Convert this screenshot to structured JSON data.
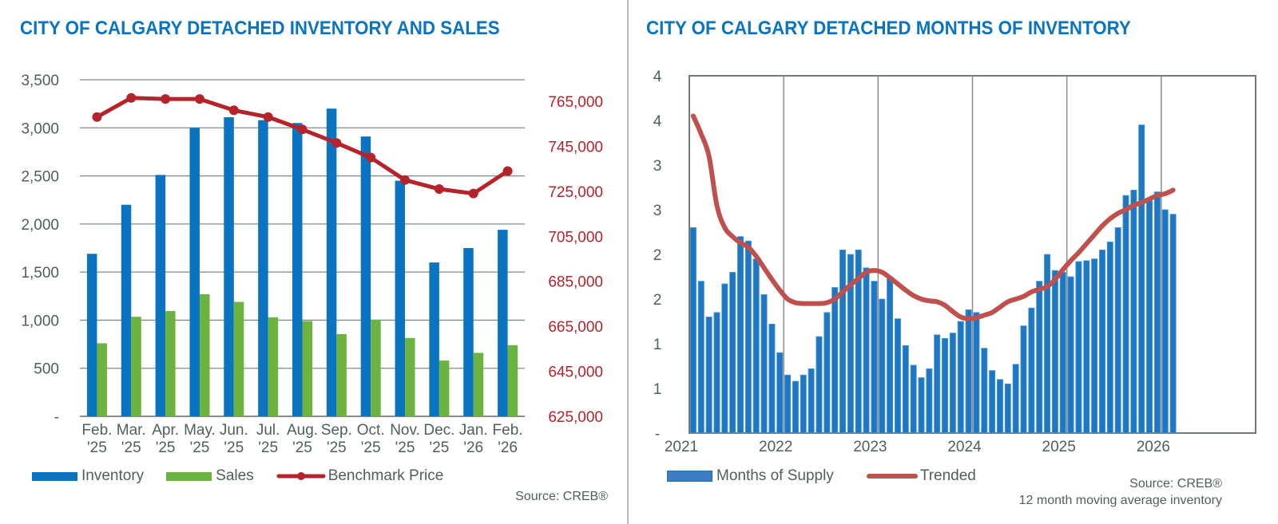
{
  "left_chart": {
    "title": "CITY OF CALGARY DETACHED INVENTORY AND SALES",
    "source": "Source: CREB®",
    "legend": [
      {
        "name": "Inventory",
        "kind": "bar",
        "color": "#0a74c0"
      },
      {
        "name": "Sales",
        "kind": "bar",
        "color": "#6db33f"
      },
      {
        "name": "Benchmark Price",
        "kind": "line-marker",
        "color": "#b5232b"
      }
    ]
  },
  "right_chart": {
    "title": "CITY OF CALGARY DETACHED MONTHS OF INVENTORY",
    "source": "Source: CREB®",
    "note": "12 month moving average inventory",
    "legend": [
      {
        "name": "Months of Supply",
        "kind": "bar",
        "color": "#1a73c0"
      },
      {
        "name": "Trended",
        "kind": "line",
        "color": "#c0504d"
      }
    ]
  },
  "chart_data": [
    {
      "type": "bar",
      "title": "CITY OF CALGARY DETACHED INVENTORY AND SALES",
      "categories": [
        [
          "Feb.",
          "'25"
        ],
        [
          "Mar.",
          "'25"
        ],
        [
          "Apr.",
          "'25"
        ],
        [
          "May.",
          "'25"
        ],
        [
          "Jun.",
          "'25"
        ],
        [
          "Jul.",
          "'25"
        ],
        [
          "Aug.",
          "'25"
        ],
        [
          "Sep.",
          "'25"
        ],
        [
          "Oct.",
          "'25"
        ],
        [
          "Nov.",
          "'25"
        ],
        [
          "Dec.",
          "'25"
        ],
        [
          "Jan.",
          "'26"
        ],
        [
          "Feb.",
          "'26"
        ]
      ],
      "series": [
        {
          "name": "Inventory",
          "type": "bar",
          "axis": "left",
          "color": "#0a74c0",
          "values": [
            1690,
            2200,
            2510,
            3000,
            3110,
            3080,
            3050,
            3200,
            2910,
            2450,
            1600,
            1750,
            1940
          ]
        },
        {
          "name": "Sales",
          "type": "bar",
          "axis": "left",
          "color": "#6db33f",
          "values": [
            760,
            1035,
            1095,
            1270,
            1190,
            1030,
            990,
            855,
            1005,
            815,
            580,
            660,
            740
          ]
        },
        {
          "name": "Benchmark Price",
          "type": "line",
          "axis": "right",
          "color": "#b5232b",
          "values": [
            758000,
            766500,
            766000,
            766000,
            761000,
            758000,
            752500,
            746500,
            740000,
            730000,
            726000,
            724000,
            734000
          ]
        }
      ],
      "y_left": {
        "min": 0,
        "max": 3500,
        "ticks": [
          0,
          500,
          1000,
          1500,
          2000,
          2500,
          3000,
          3500
        ],
        "tick_labels": [
          "-",
          "500",
          "1,000",
          "1,500",
          "2,000",
          "2,500",
          "3,000",
          "3,500"
        ]
      },
      "y_right": {
        "min": 625000,
        "max": 775000,
        "ticks": [
          625000,
          645000,
          665000,
          685000,
          705000,
          725000,
          745000,
          765000
        ],
        "tick_labels": [
          "625,000",
          "645,000",
          "665,000",
          "685,000",
          "705,000",
          "725,000",
          "745,000",
          "765,000"
        ]
      },
      "grid": true,
      "legend_position": "bottom"
    },
    {
      "type": "bar",
      "title": "CITY OF CALGARY DETACHED MONTHS OF INVENTORY",
      "x_start": "2021-01",
      "x_year_labels": [
        "2021",
        "2022",
        "2023",
        "2024",
        "2025",
        "2026"
      ],
      "x_range_years": [
        2021,
        2027
      ],
      "series": [
        {
          "name": "Months of Supply",
          "type": "bar",
          "color": "#1a73c0",
          "values": [
            2.3,
            1.7,
            1.3,
            1.35,
            1.67,
            1.8,
            2.2,
            2.15,
            1.95,
            1.55,
            1.22,
            0.9,
            0.65,
            0.58,
            0.65,
            0.72,
            1.08,
            1.35,
            1.63,
            2.05,
            2.0,
            2.05,
            1.85,
            1.7,
            1.5,
            1.75,
            1.28,
            0.98,
            0.76,
            0.62,
            0.72,
            1.1,
            1.06,
            1.12,
            1.25,
            1.38,
            1.35,
            0.95,
            0.7,
            0.6,
            0.55,
            0.77,
            1.2,
            1.4,
            1.7,
            2.0,
            1.82,
            1.8,
            1.75,
            1.92,
            1.93,
            1.95,
            2.05,
            2.14,
            2.3,
            2.66,
            2.72,
            3.45,
            2.6,
            2.7,
            2.5,
            2.45
          ]
        },
        {
          "name": "Trended",
          "type": "line",
          "color": "#c0504d",
          "values": [
            3.55,
            3.35,
            3.1,
            2.55,
            2.3,
            2.2,
            2.13,
            2.08,
            1.98,
            1.85,
            1.72,
            1.6,
            1.5,
            1.46,
            1.45,
            1.45,
            1.45,
            1.46,
            1.5,
            1.58,
            1.66,
            1.73,
            1.8,
            1.82,
            1.8,
            1.74,
            1.67,
            1.6,
            1.54,
            1.5,
            1.48,
            1.47,
            1.43,
            1.36,
            1.3,
            1.28,
            1.29,
            1.32,
            1.35,
            1.41,
            1.47,
            1.5,
            1.53,
            1.58,
            1.61,
            1.64,
            1.72,
            1.83,
            1.93,
            2.02,
            2.12,
            2.22,
            2.32,
            2.4,
            2.46,
            2.5,
            2.55,
            2.58,
            2.62,
            2.66,
            2.68,
            2.72
          ]
        }
      ],
      "y": {
        "min": 0,
        "max": 4,
        "ticks": [
          0,
          0.5,
          1,
          1.5,
          2,
          2.5,
          3,
          3.5,
          4
        ],
        "tick_labels": [
          "-",
          "1",
          "1",
          "2",
          "2",
          "3",
          "3",
          "4",
          "4"
        ]
      },
      "grid": true,
      "legend_position": "bottom"
    }
  ]
}
